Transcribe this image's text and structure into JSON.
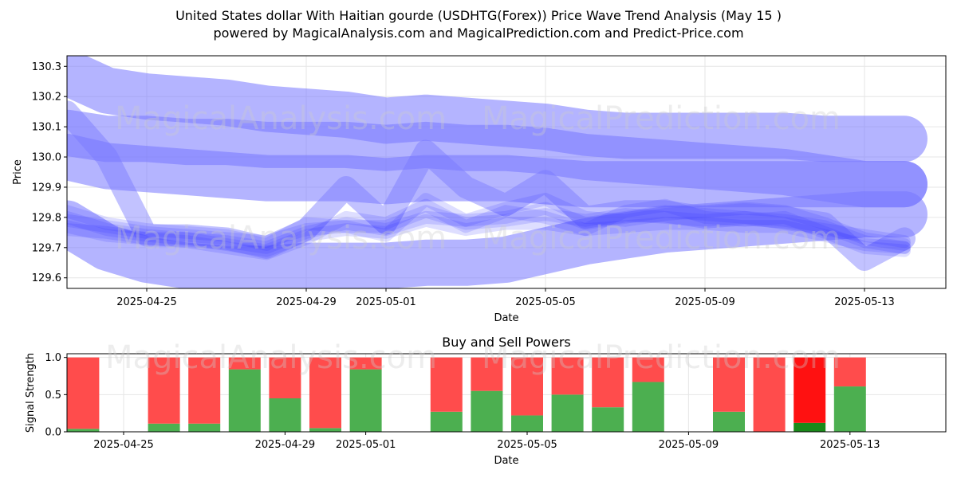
{
  "header": {
    "title": "United States dollar With Haitian gourde (USDHTG(Forex)) Price Wave Trend Analysis (May 15 )",
    "subtitle": "powered by MagicalAnalysis.com and MagicalPrediction.com and Predict-Price.com"
  },
  "watermarks": [
    "MagicalAnalysis.com",
    "MagicalPrediction.com"
  ],
  "colors": {
    "band": "#7777ff",
    "line": "#3333ff",
    "buy": "#4caf50",
    "sell": "#ff4c4c",
    "sell_strong": "#ff1111",
    "buy_strong": "#1a8a1a",
    "grid": "#e6e6e6"
  },
  "chart_data": [
    {
      "type": "line",
      "title": "",
      "xlabel": "Date",
      "ylabel": "Price",
      "x_dates": [
        "2025-04-23",
        "2025-04-24",
        "2025-04-25",
        "2025-04-26",
        "2025-04-27",
        "2025-04-28",
        "2025-04-29",
        "2025-04-30",
        "2025-05-01",
        "2025-05-02",
        "2025-05-03",
        "2025-05-04",
        "2025-05-05",
        "2025-05-06",
        "2025-05-07",
        "2025-05-08",
        "2025-05-09",
        "2025-05-10",
        "2025-05-11",
        "2025-05-12",
        "2025-05-13",
        "2025-05-14"
      ],
      "x_ticks": [
        "2025-04-25",
        "2025-04-29",
        "2025-05-01",
        "2025-05-05",
        "2025-05-09",
        "2025-05-13"
      ],
      "y_ticks": [
        129.6,
        129.7,
        129.8,
        129.9,
        130.0,
        130.1,
        130.2,
        130.3
      ],
      "ylim": [
        129.565,
        130.335
      ],
      "grid": true,
      "bands": [
        {
          "name": "",
          "values": [
            130.28,
            130.22,
            130.2,
            130.19,
            130.18,
            130.16,
            130.15,
            130.14,
            130.12,
            130.13,
            130.12,
            130.11,
            130.1,
            130.08,
            130.07,
            130.07,
            130.07,
            130.07,
            130.07,
            130.06,
            130.06,
            130.06
          ]
        },
        {
          "name": "",
          "values": [
            130.0,
            129.97,
            129.96,
            129.95,
            129.94,
            129.93,
            129.93,
            129.93,
            129.92,
            129.93,
            129.93,
            129.93,
            129.92,
            129.91,
            129.91,
            129.91,
            129.91,
            129.91,
            129.91,
            129.91,
            129.91,
            129.91
          ]
        },
        {
          "name": "",
          "values": [
            130.08,
            130.06,
            130.06,
            130.05,
            130.05,
            130.04,
            130.04,
            130.04,
            130.03,
            130.04,
            130.03,
            130.03,
            130.02,
            130.0,
            129.99,
            129.98,
            129.97,
            129.96,
            129.95,
            129.93,
            129.91,
            129.91
          ]
        },
        {
          "name": "",
          "values": [
            129.78,
            129.7,
            129.66,
            129.64,
            129.63,
            129.63,
            129.64,
            129.64,
            129.64,
            129.65,
            129.65,
            129.66,
            129.69,
            129.72,
            129.74,
            129.76,
            129.77,
            129.78,
            129.79,
            129.8,
            129.81,
            129.81
          ]
        }
      ],
      "series": [
        {
          "name": "",
          "values": [
            129.8,
            129.76,
            129.74,
            129.73,
            129.72,
            129.7,
            129.75,
            129.78,
            129.76,
            129.8,
            129.79,
            129.8,
            129.83,
            129.78,
            129.8,
            129.82,
            129.81,
            129.8,
            129.79,
            129.77,
            129.72,
            129.7
          ]
        },
        {
          "name": "",
          "values": [
            129.79,
            129.77,
            129.75,
            129.74,
            129.73,
            129.72,
            129.76,
            129.77,
            129.77,
            129.82,
            129.78,
            129.79,
            129.81,
            129.79,
            129.81,
            129.8,
            129.79,
            129.8,
            129.78,
            129.76,
            129.74,
            129.72
          ]
        },
        {
          "name": "",
          "values": [
            129.77,
            129.74,
            129.73,
            129.72,
            129.7,
            129.68,
            129.73,
            129.8,
            129.78,
            129.84,
            129.77,
            129.82,
            129.8,
            129.76,
            129.82,
            129.84,
            129.8,
            129.79,
            129.8,
            129.75,
            129.7,
            129.69
          ]
        },
        {
          "name": "",
          "values": [
            129.82,
            129.78,
            129.76,
            129.75,
            129.74,
            129.71,
            129.78,
            129.77,
            129.74,
            129.86,
            129.79,
            129.83,
            129.86,
            129.8,
            129.79,
            129.81,
            129.82,
            129.83,
            129.82,
            129.78,
            129.73,
            129.71
          ]
        },
        {
          "name": "",
          "values": [
            129.76,
            129.75,
            129.73,
            129.73,
            129.71,
            129.69,
            129.74,
            129.76,
            129.75,
            129.79,
            129.76,
            129.78,
            129.78,
            129.76,
            129.77,
            129.78,
            129.78,
            129.77,
            129.77,
            129.74,
            129.71,
            129.7
          ]
        }
      ],
      "spikes": [
        {
          "name": "",
          "values": [
            130.15,
            130.0,
            129.74,
            129.74,
            129.73,
            129.7,
            129.76,
            129.9,
            129.78,
            130.02,
            129.9,
            129.84,
            129.92,
            129.8,
            129.82,
            129.82,
            129.8,
            129.81,
            129.8,
            129.78,
            129.66,
            129.73
          ]
        }
      ]
    },
    {
      "type": "bar",
      "title": "Buy and Sell Powers",
      "xlabel": "Date",
      "ylabel": "Signal Strength",
      "x_ticks": [
        "2025-04-25",
        "2025-04-29",
        "2025-05-01",
        "2025-05-05",
        "2025-05-09",
        "2025-05-13"
      ],
      "y_ticks": [
        "0.0",
        "0.5",
        "1.0"
      ],
      "ylim": [
        0,
        1.05
      ],
      "grid": true,
      "categories": [
        "2025-04-24",
        "2025-04-26",
        "2025-04-27",
        "2025-04-28",
        "2025-04-29",
        "2025-04-30",
        "2025-05-01",
        "2025-05-03",
        "2025-05-04",
        "2025-05-05",
        "2025-05-06",
        "2025-05-07",
        "2025-05-08",
        "2025-05-10",
        "2025-05-11",
        "2025-05-12",
        "2025-05-13"
      ],
      "buy": [
        0.04,
        0.11,
        0.11,
        0.84,
        0.45,
        0.05,
        0.84,
        0.27,
        0.55,
        0.22,
        0.5,
        0.33,
        0.67,
        0.27,
        0.0,
        0.12,
        0.61
      ],
      "sell": [
        0.96,
        0.89,
        0.89,
        0.16,
        0.55,
        0.95,
        0.16,
        0.73,
        0.45,
        0.78,
        0.5,
        0.67,
        0.33,
        0.73,
        1.0,
        0.88,
        0.39
      ],
      "highlight": "2025-05-12"
    }
  ]
}
